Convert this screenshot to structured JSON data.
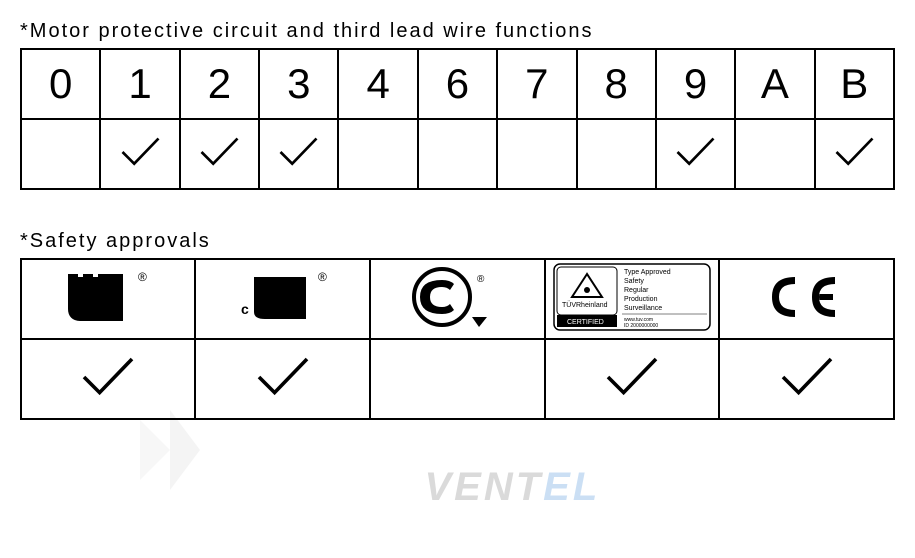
{
  "motor_section": {
    "title": "*Motor protective circuit and third lead wire functions",
    "headers": [
      "0",
      "1",
      "2",
      "3",
      "4",
      "6",
      "7",
      "8",
      "9",
      "A",
      "B"
    ],
    "checks": [
      false,
      true,
      true,
      true,
      false,
      false,
      false,
      false,
      true,
      false,
      true
    ],
    "border_color": "#000000",
    "text_color": "#000000",
    "header_fontsize": 42,
    "title_fontsize": 20
  },
  "safety_section": {
    "title": "*Safety approvals",
    "logos": [
      "ul-ru",
      "ul-cru",
      "csa",
      "tuv",
      "ce"
    ],
    "checks": [
      true,
      true,
      false,
      true,
      true
    ],
    "border_color": "#000000",
    "title_fontsize": 20
  },
  "checkmark": {
    "stroke_color": "#000000",
    "stroke_width": 3
  },
  "watermark": {
    "text_part1": "VENT",
    "text_part2": "EL",
    "color1": "#888888",
    "color2": "#5599dd"
  },
  "tuv_text": {
    "line1": "Type Approved",
    "line2": "Safety",
    "line3": "Regular",
    "line4": "Production",
    "line5": "Surveillance",
    "footer1": "www.tuv.com",
    "footer2": "ID 2000000000",
    "brand": "TÜVRheinland",
    "certified": "CERTIFIED"
  }
}
